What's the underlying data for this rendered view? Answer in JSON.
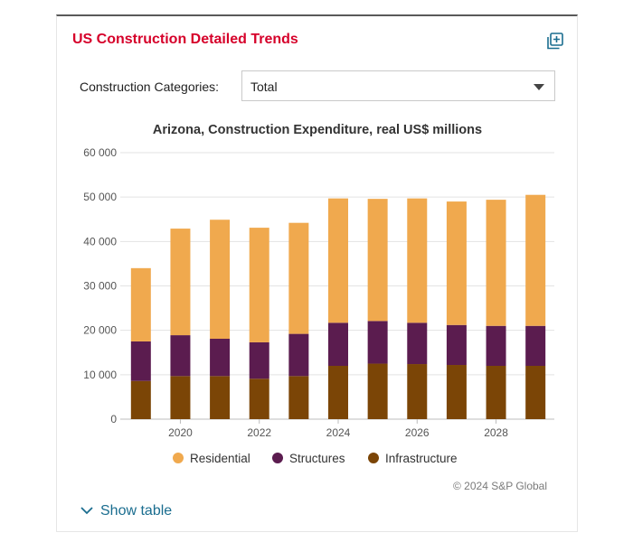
{
  "card": {
    "title": "US Construction Detailed Trends",
    "expand_icon": "expand-add-icon"
  },
  "filter": {
    "label": "Construction Categories:",
    "selected": "Total"
  },
  "chart_data": {
    "type": "bar",
    "stacked": true,
    "title": "Arizona, Construction Expenditure, real US$ millions",
    "x": [
      2019,
      2020,
      2021,
      2022,
      2023,
      2024,
      2025,
      2026,
      2027,
      2028,
      2029
    ],
    "x_tick_labels": [
      "2020",
      "2022",
      "2024",
      "2026",
      "2028"
    ],
    "ylim": [
      0,
      60000
    ],
    "y_tick_labels": [
      "0",
      "10 000",
      "20 000",
      "30 000",
      "40 000",
      "50 000",
      "60 000"
    ],
    "grid": true,
    "legend_position": "bottom",
    "series": [
      {
        "name": "Infrastructure",
        "color": "#7b4506",
        "values": [
          8600,
          9700,
          9700,
          9100,
          9700,
          12000,
          12500,
          12400,
          12200,
          12000,
          12000
        ]
      },
      {
        "name": "Structures",
        "color": "#5b1c4f",
        "values": [
          8900,
          9200,
          8400,
          8200,
          9500,
          9700,
          9600,
          9300,
          9000,
          9000,
          9000
        ]
      },
      {
        "name": "Residential",
        "color": "#f0a94e",
        "values": [
          16500,
          24000,
          26800,
          25800,
          25000,
          28000,
          27500,
          28000,
          27800,
          28400,
          29500
        ]
      }
    ],
    "legend_order": [
      "Residential",
      "Structures",
      "Infrastructure"
    ]
  },
  "footer": {
    "credit": "© 2024 S&P Global",
    "show_table": "Show table",
    "chevron_icon": "chevron-down-icon"
  }
}
